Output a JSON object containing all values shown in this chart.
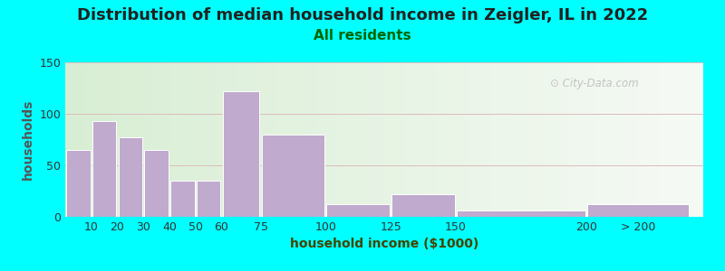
{
  "title": "Distribution of median household income in Zeigler, IL in 2022",
  "subtitle": "All residents",
  "xlabel": "household income ($1000)",
  "ylabel": "households",
  "background_outer": "#00FFFF",
  "bar_color": "#C0AACE",
  "bar_edge_color": "#FFFFFF",
  "categories": [
    "10",
    "20",
    "30",
    "40",
    "50",
    "60",
    "75",
    "100",
    "125",
    "150",
    "200",
    "> 200"
  ],
  "values": [
    65,
    93,
    77,
    65,
    35,
    35,
    122,
    80,
    12,
    22,
    6,
    12
  ],
  "bar_lefts": [
    0,
    10,
    20,
    30,
    40,
    50,
    60,
    75,
    100,
    125,
    150,
    200
  ],
  "bar_rights": [
    10,
    20,
    30,
    40,
    50,
    60,
    75,
    100,
    125,
    150,
    200,
    240
  ],
  "tick_positions": [
    10,
    20,
    30,
    40,
    50,
    60,
    75,
    100,
    125,
    150,
    200,
    220
  ],
  "ylim": [
    0,
    150
  ],
  "yticks": [
    0,
    50,
    100,
    150
  ],
  "title_fontsize": 13,
  "subtitle_fontsize": 11,
  "subtitle_color": "#006600",
  "axis_label_fontsize": 10,
  "tick_fontsize": 9,
  "watermark": "City-Data.com",
  "grad_color_left": "#D8EED4",
  "grad_color_right": "#F0F4EE"
}
